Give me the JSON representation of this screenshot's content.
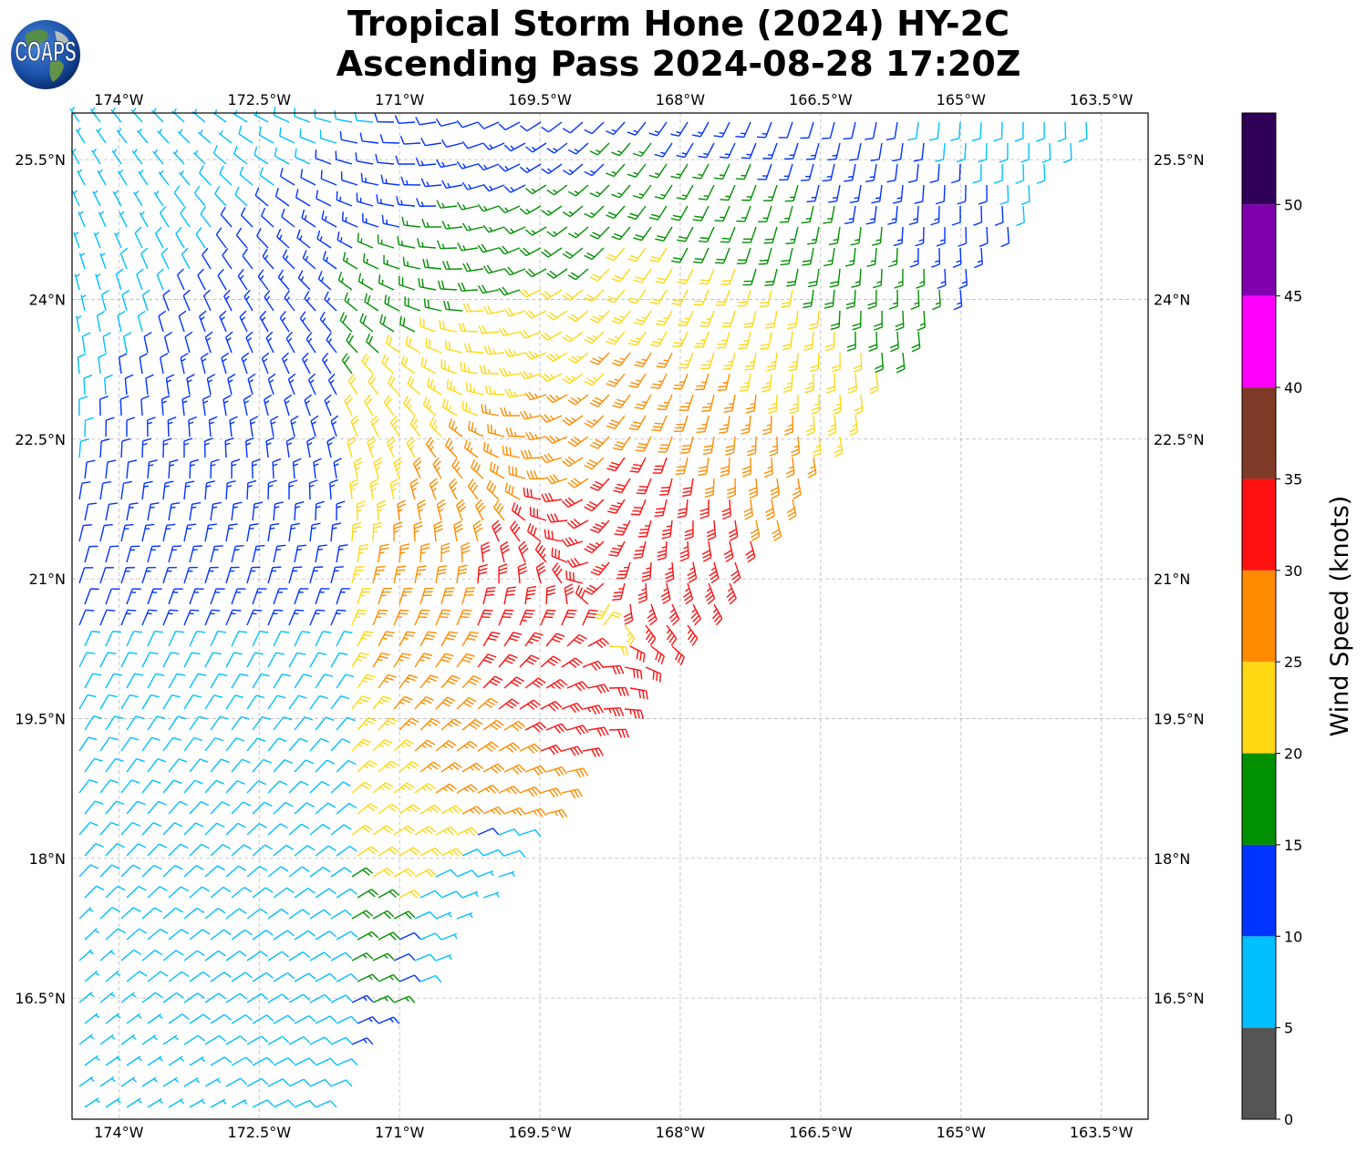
{
  "title": {
    "line1": "Tropical Storm Hone (2024) HY-2C",
    "line2": "Ascending Pass 2024-08-28 17:20Z"
  },
  "logo": {
    "text": "COAPS",
    "icon": "globe-icon"
  },
  "map": {
    "lon_range": [
      -174.5,
      -163.0
    ],
    "lat_range": [
      15.2,
      26.0
    ],
    "lon_ticks": [
      {
        "value": -174.0,
        "label": "174°W"
      },
      {
        "value": -172.5,
        "label": "172.5°W"
      },
      {
        "value": -171.0,
        "label": "171°W"
      },
      {
        "value": -169.5,
        "label": "169.5°W"
      },
      {
        "value": -168.0,
        "label": "168°W"
      },
      {
        "value": -166.5,
        "label": "166.5°W"
      },
      {
        "value": -165.0,
        "label": "165°W"
      },
      {
        "value": -163.5,
        "label": "163.5°W"
      }
    ],
    "lat_ticks": [
      {
        "value": 25.5,
        "label": "25.5°N"
      },
      {
        "value": 24.0,
        "label": "24°N"
      },
      {
        "value": 22.5,
        "label": "22.5°N"
      },
      {
        "value": 21.0,
        "label": "21°N"
      },
      {
        "value": 19.5,
        "label": "19.5°N"
      },
      {
        "value": 18.0,
        "label": "18°N"
      },
      {
        "value": 16.5,
        "label": "16.5°N"
      }
    ],
    "grid": true,
    "storm_center": {
      "lon": -168.8,
      "lat": 20.5
    },
    "low_wind_center": {
      "lon": -169.6,
      "lat": 16.9
    }
  },
  "colorbar": {
    "title": "Wind Speed (knots)",
    "bins": [
      {
        "min": 0,
        "max": 5,
        "color": "#555555"
      },
      {
        "min": 5,
        "max": 10,
        "color": "#00bfff"
      },
      {
        "min": 10,
        "max": 15,
        "color": "#0033ff"
      },
      {
        "min": 15,
        "max": 20,
        "color": "#009000"
      },
      {
        "min": 20,
        "max": 25,
        "color": "#ffd814"
      },
      {
        "min": 25,
        "max": 30,
        "color": "#ff8c00"
      },
      {
        "min": 30,
        "max": 35,
        "color": "#ff1010"
      },
      {
        "min": 35,
        "max": 40,
        "color": "#803a28"
      },
      {
        "min": 40,
        "max": 45,
        "color": "#ff00ff"
      },
      {
        "min": 45,
        "max": 50,
        "color": "#8000b0"
      },
      {
        "min": 50,
        "max": 55,
        "color": "#300058"
      }
    ],
    "tick_labels": [
      "0",
      "5",
      "10",
      "15",
      "20",
      "25",
      "30",
      "35",
      "40",
      "45",
      "50"
    ]
  }
}
